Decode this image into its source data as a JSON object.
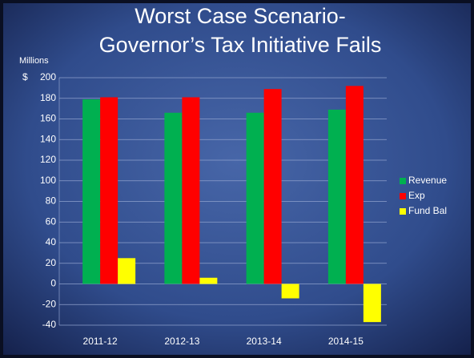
{
  "chart_data": {
    "type": "bar",
    "title": [
      "Worst Case Scenario-",
      "Governor’s Tax Initiative Fails"
    ],
    "y_axis_label": "Millions",
    "y_unit_symbol": "$",
    "categories": [
      "2011-12",
      "2012-13",
      "2013-14",
      "2014-15"
    ],
    "series": [
      {
        "name": "Revenue",
        "color": "#00b050",
        "values": [
          179,
          166,
          166,
          169
        ]
      },
      {
        "name": "Exp",
        "color": "#ff0000",
        "values": [
          181,
          181,
          189,
          192
        ]
      },
      {
        "name": "Fund Bal",
        "color": "#ffff00",
        "values": [
          25,
          6,
          -14,
          -37
        ]
      }
    ],
    "ylim": [
      -40,
      200
    ],
    "yticks": [
      -40,
      -20,
      0,
      20,
      40,
      60,
      80,
      100,
      120,
      140,
      160,
      180,
      200
    ],
    "grid": true,
    "legend": "right"
  }
}
